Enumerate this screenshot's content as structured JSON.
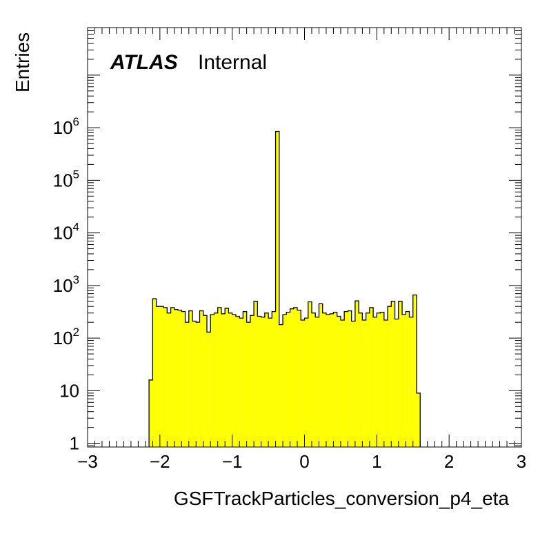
{
  "chart_data": {
    "type": "histogram",
    "xlabel": "GSFTrackParticles_conversion_p4_eta",
    "ylabel": "Entries",
    "experiment_label": "ATLAS",
    "status_label": "Internal",
    "xlim": [
      -3,
      3
    ],
    "ylim": [
      0.85,
      80000000
    ],
    "yscale": "log",
    "x_tick_labels": [
      "−3",
      "−2",
      "−1",
      "0",
      "1",
      "2",
      "3"
    ],
    "y_tick_labels": [
      {
        "base": "1",
        "exp": ""
      },
      {
        "base": "10",
        "exp": ""
      },
      {
        "base": "10",
        "exp": "2"
      },
      {
        "base": "10",
        "exp": "3"
      },
      {
        "base": "10",
        "exp": "4"
      },
      {
        "base": "10",
        "exp": "5"
      },
      {
        "base": "10",
        "exp": "6"
      }
    ],
    "fill_color": "#ffff00",
    "line_color": "#000000",
    "bin_edges_start": -2.15,
    "bin_width": 0.05,
    "bin_contents": [
      16,
      560,
      400,
      400,
      380,
      300,
      380,
      350,
      340,
      320,
      200,
      330,
      210,
      200,
      330,
      270,
      130,
      280,
      300,
      380,
      290,
      370,
      300,
      280,
      260,
      240,
      320,
      200,
      270,
      500,
      260,
      250,
      300,
      240,
      320,
      850000,
      180,
      280,
      310,
      360,
      380,
      340,
      220,
      240,
      490,
      300,
      250,
      450,
      300,
      280,
      290,
      310,
      260,
      220,
      320,
      330,
      210,
      510,
      300,
      220,
      300,
      380,
      250,
      300,
      310,
      220,
      400,
      500,
      230,
      500,
      280,
      320,
      250,
      660,
      9
    ]
  }
}
